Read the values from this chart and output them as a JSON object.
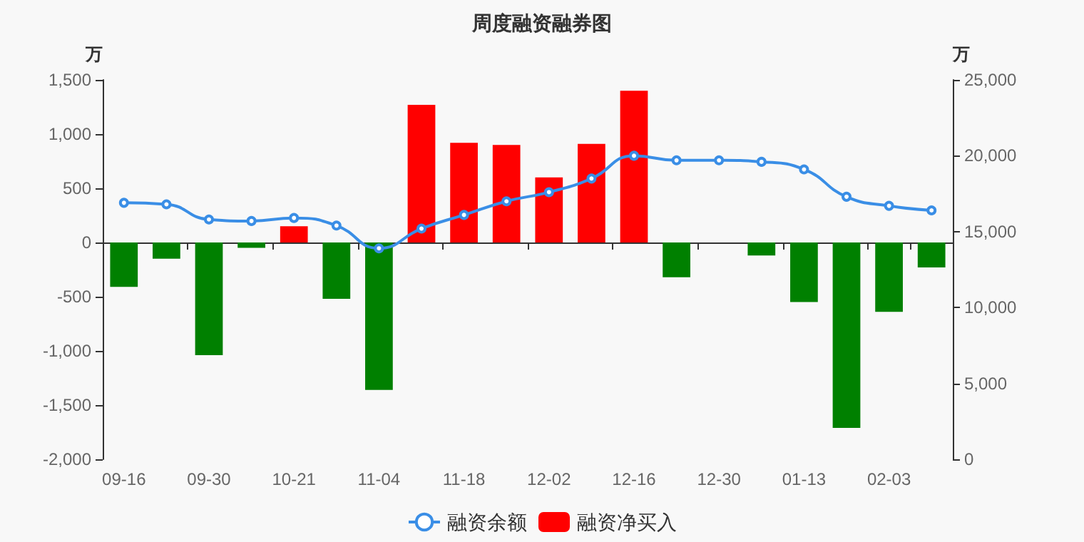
{
  "chart_data": {
    "type": "bar",
    "title": "周度融资融券图",
    "ylabel": "万",
    "y2label": "万",
    "categories": [
      "09-16",
      null,
      "09-30",
      null,
      "10-21",
      null,
      "11-04",
      null,
      "11-18",
      null,
      "12-02",
      null,
      "12-16",
      null,
      "12-30",
      null,
      "01-13",
      null,
      "02-03",
      null
    ],
    "series": [
      {
        "name": "融资余额",
        "type": "line",
        "axis": "y2",
        "color": "#3a8ee6",
        "marker": "circle",
        "values": [
          16900,
          16800,
          15800,
          15700,
          15900,
          15400,
          13900,
          15200,
          16100,
          17000,
          17600,
          18500,
          20000,
          19700,
          19700,
          19600,
          19100,
          17300,
          16700,
          16400
        ]
      },
      {
        "name": "融资净买入",
        "color": "#ff0000",
        "colors": [
          "#008000",
          "#008000",
          "#008000",
          "#008000",
          "#ff0000",
          "#008000",
          "#008000",
          "#ff0000",
          "#ff0000",
          "#ff0000",
          "#ff0000",
          "#ff0000",
          "#ff0000",
          "#008000",
          "#008000",
          "#008000",
          "#008000",
          "#008000",
          "#008000",
          "#008000"
        ],
        "values": [
          -410,
          -150,
          -1040,
          -50,
          150,
          -520,
          -1360,
          1270,
          920,
          900,
          600,
          910,
          1400,
          -320,
          0,
          -120,
          -550,
          -1710,
          -640,
          -230
        ]
      }
    ],
    "ylim": [
      -2000,
      1500
    ],
    "yticks": [
      {
        "value": -2000,
        "label": "-2,000"
      },
      {
        "value": -1500,
        "label": "-1,500"
      },
      {
        "value": -1000,
        "label": "-1,000"
      },
      -500,
      0,
      500,
      {
        "value": 1000,
        "label": "1,000"
      },
      {
        "value": 1500,
        "label": "1,500"
      }
    ],
    "y2lim": [
      0,
      25000
    ],
    "y2ticks": [
      0,
      {
        "value": 5000,
        "label": "5,000"
      },
      {
        "value": 10000,
        "label": "10,000"
      },
      {
        "value": 15000,
        "label": "15,000"
      },
      {
        "value": 20000,
        "label": "20,000"
      },
      {
        "value": 25000,
        "label": "25,000"
      }
    ],
    "legend": "bottom"
  }
}
